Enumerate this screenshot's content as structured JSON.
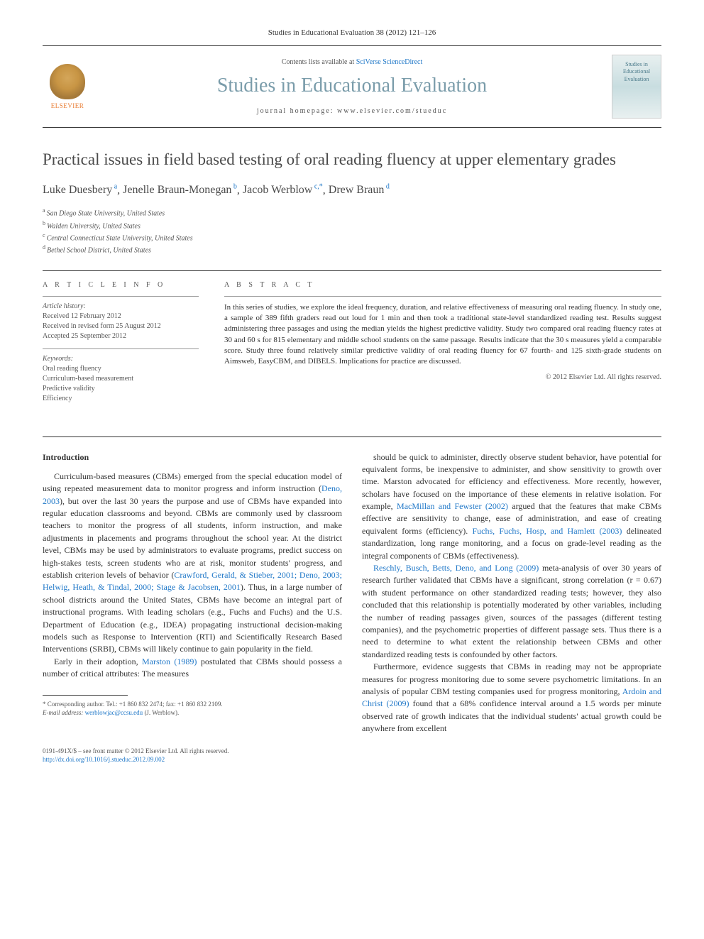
{
  "journal_ref": "Studies in Educational Evaluation 38 (2012) 121–126",
  "header": {
    "contents_prefix": "Contents lists available at ",
    "contents_link": "SciVerse ScienceDirect",
    "journal_title": "Studies in Educational Evaluation",
    "homepage_prefix": "journal homepage: ",
    "homepage_url": "www.elsevier.com/stueduc",
    "elsevier_label": "ELSEVIER",
    "cover_text": "Studies in Educational Evaluation"
  },
  "article": {
    "title": "Practical issues in field based testing of oral reading fluency at upper elementary grades",
    "authors_html": "Luke Duesbery<sup>a</sup>, Jenelle Braun-Monegan<sup>b</sup>, Jacob Werblow<sup>c,*</sup>, Drew Braun<sup>d</sup>",
    "authors": [
      {
        "name": "Luke Duesbery",
        "sup": "a"
      },
      {
        "name": "Jenelle Braun-Monegan",
        "sup": "b"
      },
      {
        "name": "Jacob Werblow",
        "sup": "c,*"
      },
      {
        "name": "Drew Braun",
        "sup": "d"
      }
    ],
    "affiliations": [
      {
        "sup": "a",
        "text": "San Diego State University, United States"
      },
      {
        "sup": "b",
        "text": "Walden University, United States"
      },
      {
        "sup": "c",
        "text": "Central Connecticut State University, United States"
      },
      {
        "sup": "d",
        "text": "Bethel School District, United States"
      }
    ]
  },
  "info": {
    "heading": "A R T I C L E   I N F O",
    "history_heading": "Article history:",
    "history": "Received 12 February 2012\nReceived in revised form 25 August 2012\nAccepted 25 September 2012",
    "keywords_heading": "Keywords:",
    "keywords": "Oral reading fluency\nCurriculum-based measurement\nPredictive validity\nEfficiency"
  },
  "abstract": {
    "heading": "A B S T R A C T",
    "text": "In this series of studies, we explore the ideal frequency, duration, and relative effectiveness of measuring oral reading fluency. In study one, a sample of 389 fifth graders read out loud for 1 min and then took a traditional state-level standardized reading test. Results suggest administering three passages and using the median yields the highest predictive validity. Study two compared oral reading fluency rates at 30 and 60 s for 815 elementary and middle school students on the same passage. Results indicate that the 30 s measures yield a comparable score. Study three found relatively similar predictive validity of oral reading fluency for 67 fourth- and 125 sixth-grade students on Aimsweb, EasyCBM, and DIBELS. Implications for practice are discussed.",
    "copyright": "© 2012 Elsevier Ltd. All rights reserved."
  },
  "body": {
    "intro_heading": "Introduction",
    "left_paras": [
      "Curriculum-based measures (CBMs) emerged from the special education model of using repeated measurement data to monitor progress and inform instruction (|Deno, 2003|), but over the last 30 years the purpose and use of CBMs have expanded into regular education classrooms and beyond. CBMs are commonly used by classroom teachers to monitor the progress of all students, inform instruction, and make adjustments in placements and programs throughout the school year. At the district level, CBMs may be used by administrators to evaluate programs, predict success on high-stakes tests, screen students who are at risk, monitor students' progress, and establish criterion levels of behavior (|Crawford, Gerald, & Stieber, 2001; Deno, 2003; Helwig, Heath, & Tindal, 2000; Stage & Jacobsen, 2001|). Thus, in a large number of school districts around the United States, CBMs have become an integral part of instructional programs. With leading scholars (e.g., Fuchs and Fuchs) and the U.S. Department of Education (e.g., IDEA) propagating instructional decision-making models such as Response to Intervention (RTI) and Scientifically Research Based Interventions (SRBI), CBMs will likely continue to gain popularity in the field.",
      "Early in their adoption, |Marston (1989)| postulated that CBMs should possess a number of critical attributes: The measures"
    ],
    "right_paras": [
      "should be quick to administer, directly observe student behavior, have potential for equivalent forms, be inexpensive to administer, and show sensitivity to growth over time. Marston advocated for efficiency and effectiveness. More recently, however, scholars have focused on the importance of these elements in relative isolation. For example, |MacMillan and Fewster (2002)| argued that the features that make CBMs effective are sensitivity to change, ease of administration, and ease of creating equivalent forms (efficiency). |Fuchs, Fuchs, Hosp, and Hamlett (2003)| delineated standardization, long range monitoring, and a focus on grade-level reading as the integral components of CBMs (effectiveness).",
      "|Reschly, Busch, Betts, Deno, and Long (2009)| meta-analysis of over 30 years of research further validated that CBMs have a significant, strong correlation (r = 0.67) with student performance on other standardized reading tests; however, they also concluded that this relationship is potentially moderated by other variables, including the number of reading passages given, sources of the passages (different testing companies), and the psychometric properties of different passage sets. Thus there is a need to determine to what extent the relationship between CBMs and other standardized reading tests is confounded by other factors.",
      "Furthermore, evidence suggests that CBMs in reading may not be appropriate measures for progress monitoring due to some severe psychometric limitations. In an analysis of popular CBM testing companies used for progress monitoring, |Ardoin and Christ (2009)| found that a 68% confidence interval around a 1.5 words per minute observed rate of growth indicates that the individual students' actual growth could be anywhere from excellent"
    ]
  },
  "footnotes": {
    "corresponding": "* Corresponding author. Tel.: +1 860 832 2474; fax: +1 860 832 2109.",
    "email_label": "E-mail address: ",
    "email": "werblowjac@ccsu.edu",
    "email_suffix": " (J. Werblow)."
  },
  "bottom": {
    "line1": "0191-491X/$ – see front matter © 2012 Elsevier Ltd. All rights reserved.",
    "doi": "http://dx.doi.org/10.1016/j.stueduc.2012.09.002"
  },
  "colors": {
    "link": "#2078c8",
    "journal_title": "#7a9caa",
    "elsevier_orange": "#e8792e",
    "text": "#333333",
    "muted": "#555555"
  },
  "typography": {
    "body_pt": 12,
    "title_pt": 23,
    "journal_title_pt": 28,
    "abstract_pt": 11,
    "info_pt": 10,
    "footnote_pt": 9
  }
}
